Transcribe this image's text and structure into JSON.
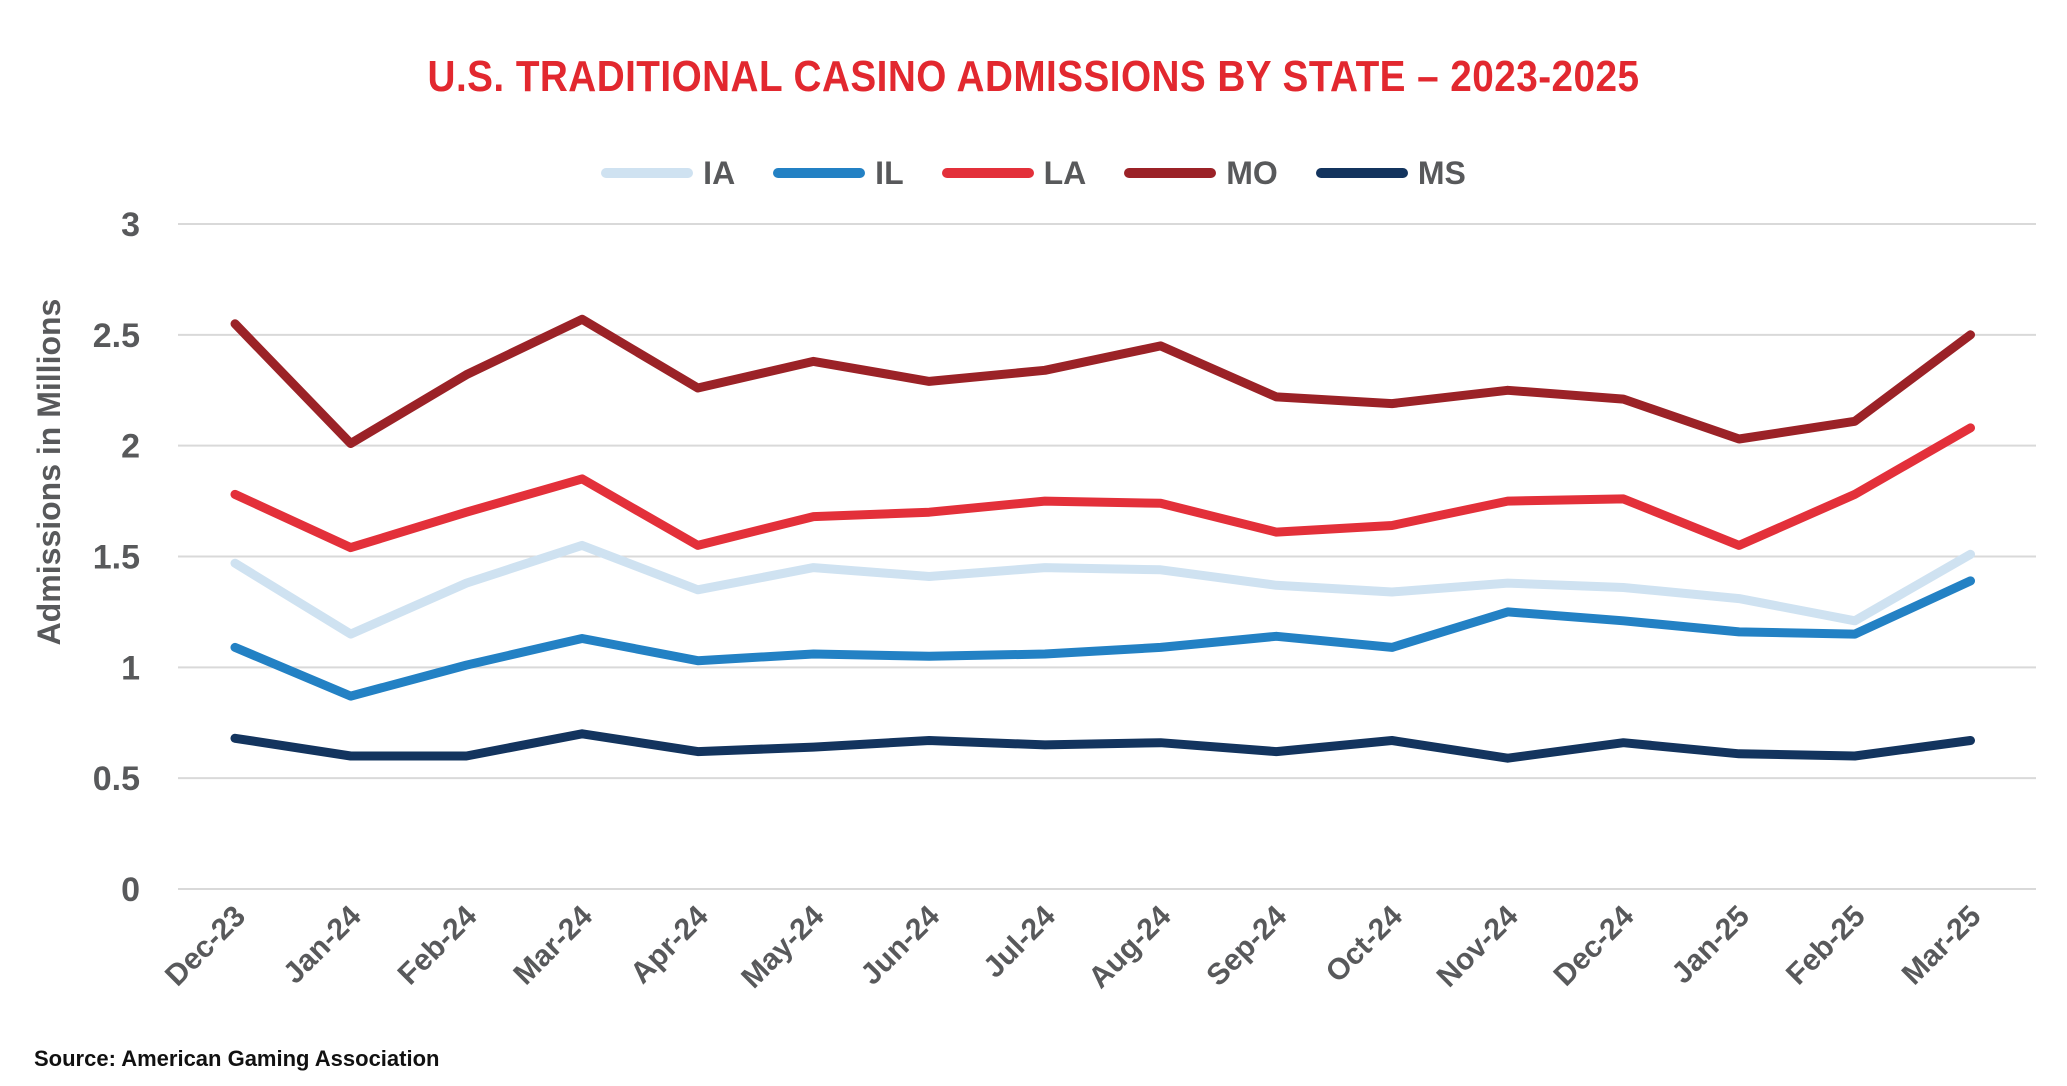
{
  "chart_data": {
    "type": "line",
    "title": "U.S. TRADITIONAL CASINO ADMISSIONS BY STATE – 2023-2025",
    "xlabel": "",
    "ylabel": "Admissions in Millions",
    "ylim": [
      0,
      3
    ],
    "yticks": [
      "0",
      "0.5",
      "1",
      "1.5",
      "2",
      "2.5",
      "3"
    ],
    "grid": true,
    "legend_position": "top-center",
    "categories": [
      "Dec-23",
      "Jan-24",
      "Feb-24",
      "Mar-24",
      "Apr-24",
      "May-24",
      "Jun-24",
      "Jul-24",
      "Aug-24",
      "Sep-24",
      "Oct-24",
      "Nov-24",
      "Dec-24",
      "Jan-25",
      "Feb-25",
      "Mar-25"
    ],
    "series": [
      {
        "name": "IA",
        "color": "#cfe2f1",
        "values": [
          1.47,
          1.15,
          1.38,
          1.55,
          1.35,
          1.45,
          1.41,
          1.45,
          1.44,
          1.37,
          1.34,
          1.38,
          1.36,
          1.31,
          1.21,
          1.51
        ]
      },
      {
        "name": "IL",
        "color": "#2381c4",
        "values": [
          1.09,
          0.87,
          1.01,
          1.13,
          1.03,
          1.06,
          1.05,
          1.06,
          1.09,
          1.14,
          1.09,
          1.25,
          1.21,
          1.16,
          1.15,
          1.39
        ]
      },
      {
        "name": "LA",
        "color": "#e3303a",
        "values": [
          1.78,
          1.54,
          1.7,
          1.85,
          1.55,
          1.68,
          1.7,
          1.75,
          1.74,
          1.61,
          1.64,
          1.75,
          1.76,
          1.55,
          1.78,
          2.08
        ]
      },
      {
        "name": "MO",
        "color": "#9b2227",
        "values": [
          2.55,
          2.01,
          2.32,
          2.57,
          2.26,
          2.38,
          2.29,
          2.34,
          2.45,
          2.22,
          2.19,
          2.25,
          2.21,
          2.03,
          2.11,
          2.5
        ]
      },
      {
        "name": "MS",
        "color": "#13345e",
        "values": [
          0.68,
          0.6,
          0.6,
          0.7,
          0.62,
          0.64,
          0.67,
          0.65,
          0.66,
          0.62,
          0.67,
          0.59,
          0.66,
          0.61,
          0.6,
          0.67
        ]
      }
    ]
  },
  "footer": {
    "source": "Source: American Gaming Association"
  }
}
